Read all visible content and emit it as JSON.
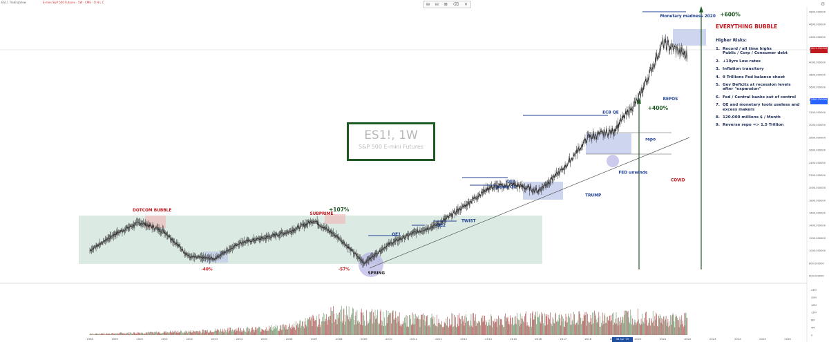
{
  "header": {
    "symbol": "ES1!, TradingView",
    "ohlc_line": "E-mini S&P 500 Futures · 1W · CME · O H L C",
    "toolbar_icons": [
      "cursor-icon",
      "fib-icon",
      "zoom-icon",
      "trash-icon",
      "close-icon"
    ],
    "toolbar_glyphs": [
      "⊞",
      "⊟",
      "⊠",
      "⌫",
      "✕"
    ]
  },
  "watermark": {
    "title": "ES1!, 1W",
    "subtitle": "S&P 500 E-mini Futures"
  },
  "colors": {
    "candle": "#3a3a3a",
    "annotation_red": "#c0181c",
    "annotation_blue": "#1f3f8f",
    "annotation_green": "#1e5a23",
    "zone_fill": "#c9dfd6",
    "box_fill": "#b9c3e8",
    "trendline": "#555555",
    "volume": "#a83a3a"
  },
  "chart_data": {
    "type": "line",
    "x": [
      "1998",
      "1999",
      "2000",
      "2001",
      "2002",
      "2003",
      "2004",
      "2005",
      "2006",
      "2007",
      "2008",
      "2009",
      "2010",
      "2011",
      "2012",
      "2013",
      "2014",
      "2015",
      "2016",
      "2017",
      "2018",
      "2019",
      "2020",
      "2021",
      "2022",
      "2023",
      "2024",
      "2025",
      "2026"
    ],
    "series": [
      {
        "values": [
          1000,
          1260,
          1450,
          1300,
          900,
          870,
          1120,
          1200,
          1300,
          1480,
          1200,
          800,
          1100,
          1280,
          1420,
          1700,
          2000,
          2050,
          1950,
          2300,
          2800,
          2900,
          3400,
          4300,
          4100,
          null,
          null,
          null,
          null
        ]
      }
    ],
    "volume": [
      0.2,
      0.3,
      0.4,
      0.5,
      0.6,
      0.8,
      1.0,
      1.1,
      1.5,
      2.5,
      3.8,
      3.2,
      3.0,
      2.8,
      2.5,
      2.7,
      2.5,
      2.8,
      2.9,
      2.6,
      3.0,
      2.8,
      3.6,
      2.6,
      2.9,
      null,
      null,
      null,
      null
    ],
    "ylim": [
      600,
      4800
    ],
    "y_ticks": [
      "4800.000000",
      "4600.000000",
      "4400.000000",
      "4200.000000",
      "4000.000000",
      "3800.000000",
      "3600.000000",
      "3400.000000",
      "3200.000000",
      "3000.000000",
      "2800.000000",
      "2600.000000",
      "2400.000000",
      "2200.000000",
      "2000.000000",
      "1800.000000",
      "1600.000000",
      "1400.000000",
      "1200.000000",
      "1000.000000",
      "800.000000",
      "600.000000"
    ],
    "y_tick_values": [
      4800,
      4600,
      4400,
      4200,
      4000,
      3800,
      3600,
      3400,
      3200,
      3000,
      2800,
      2600,
      2400,
      2200,
      2000,
      1800,
      1600,
      1400,
      1200,
      1000,
      800,
      600
    ],
    "volume_ticks": [
      "24M",
      "20M",
      "16M",
      "12M",
      "8M",
      "4M",
      "0"
    ],
    "volume_tick_values": [
      24,
      20,
      16,
      12,
      8,
      4,
      0
    ],
    "last_price": "4212.250000",
    "marked_price": "3360.250000",
    "date_marker": "08 Apr '19",
    "annotations": [
      {
        "text": "DOTCOM BUBBLE",
        "x": 2000.5,
        "y": 1620,
        "color": "red"
      },
      {
        "text": "-40%",
        "x": 2002.7,
        "y": 680,
        "color": "red"
      },
      {
        "text": "SUBPRIME",
        "x": 2007.3,
        "y": 1570,
        "color": "red"
      },
      {
        "text": "+107%",
        "x": 2008.0,
        "y": 1625,
        "color": "green"
      },
      {
        "text": "-57%",
        "x": 2008.2,
        "y": 680,
        "color": "red"
      },
      {
        "text": "SPRING",
        "x": 2009.5,
        "y": 620,
        "color": "dark"
      },
      {
        "text": "QE1",
        "x": 2010.3,
        "y": 1240,
        "color": "blue"
      },
      {
        "text": "QE2",
        "x": 2012.1,
        "y": 1380,
        "color": "blue"
      },
      {
        "text": "TWIST",
        "x": 2013.2,
        "y": 1450,
        "color": "blue"
      },
      {
        "text": "QE3",
        "x": 2014.9,
        "y": 2080,
        "color": "blue"
      },
      {
        "text": "Japan QE",
        "x": 2014.7,
        "y": 1990,
        "color": "blue"
      },
      {
        "text": "TRUMP",
        "x": 2018.2,
        "y": 1860,
        "color": "blue"
      },
      {
        "text": "ECB QE",
        "x": 2018.9,
        "y": 3180,
        "color": "blue"
      },
      {
        "text": "FED unwinds",
        "x": 2019.8,
        "y": 2220,
        "color": "blue"
      },
      {
        "text": "repo",
        "x": 2020.5,
        "y": 2750,
        "color": "blue"
      },
      {
        "text": "+400%",
        "x": 2020.8,
        "y": 3240,
        "color": "green"
      },
      {
        "text": "REPOS",
        "x": 2021.3,
        "y": 3390,
        "color": "blue"
      },
      {
        "text": "COVID",
        "x": 2021.6,
        "y": 2100,
        "color": "red"
      },
      {
        "text": "Monetary madness 2020",
        "x": 2022.0,
        "y": 4710,
        "color": "blue"
      },
      {
        "text": "+600%",
        "x": 2023.7,
        "y": 4730,
        "color": "green"
      }
    ],
    "risks": {
      "title": "EVERYTHING BUBBLE",
      "heading": "Higher Risks:",
      "items": [
        {
          "n": "1.",
          "text": "Record / all time highs\nPublic  / Corp / Consumer debt"
        },
        {
          "n": "2.",
          "text": "+10yrs Low rates"
        },
        {
          "n": "3.",
          "text": "Inflation transitory"
        },
        {
          "n": "4.",
          "text": "9 Trillions Fed balance sheet"
        },
        {
          "n": "5.",
          "text": "Gov Deficits at recession levels\nafter \"expansion\""
        },
        {
          "n": "6.",
          "text": "Fed / Central banks out of control"
        },
        {
          "n": "7.",
          "text": "QE and monetary tools useless and\nexcess makers"
        },
        {
          "n": "8.",
          "text": "120.000 millions $ / Month"
        },
        {
          "n": "9.",
          "text": "Reverse repo => 1.5 Trillion"
        }
      ]
    }
  }
}
